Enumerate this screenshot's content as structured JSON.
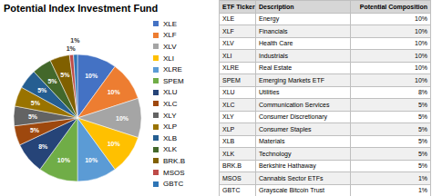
{
  "chart_data": {
    "type": "pie",
    "title": "Potential Index Investment Fund",
    "categories": [
      "XLE",
      "XLF",
      "XLV",
      "XLI",
      "XLRE",
      "SPEM",
      "XLU",
      "XLC",
      "XLY",
      "XLP",
      "XLB",
      "XLK",
      "BRK.B",
      "MSOS",
      "GBTC"
    ],
    "values": [
      10,
      10,
      10,
      10,
      10,
      10,
      8,
      5,
      5,
      5,
      5,
      5,
      5,
      1,
      1
    ],
    "value_labels": [
      "10%",
      "10%",
      "10%",
      "10%",
      "10%",
      "10%",
      "8%",
      "5%",
      "5%",
      "5%",
      "5%",
      "5%",
      "5%",
      "1%",
      "1%"
    ],
    "colors": [
      "#4472C4",
      "#ED7D31",
      "#A5A5A5",
      "#FFC000",
      "#5B9BD5",
      "#70AD47",
      "#264478",
      "#9E480E",
      "#636363",
      "#997300",
      "#255E91",
      "#43682B",
      "#806000",
      "#BE4B48",
      "#2E75B6"
    ],
    "data_labels": true,
    "legend": "right",
    "table": {
      "headers": [
        "ETF Ticker",
        "Description",
        "Potential Composition"
      ],
      "descriptions": [
        "Energy",
        "Financials",
        "Health Care",
        "Industrials",
        "Real Estate",
        "Emerging Markets ETF",
        "Utilities",
        "Communication Services",
        "Consumer Discretionary",
        "Consumer Staples",
        "Materials",
        "Technology",
        "Berkshire Hathaway",
        "Cannabis Sector ETFs",
        "Grayscale Bitcoin Trust"
      ]
    }
  }
}
